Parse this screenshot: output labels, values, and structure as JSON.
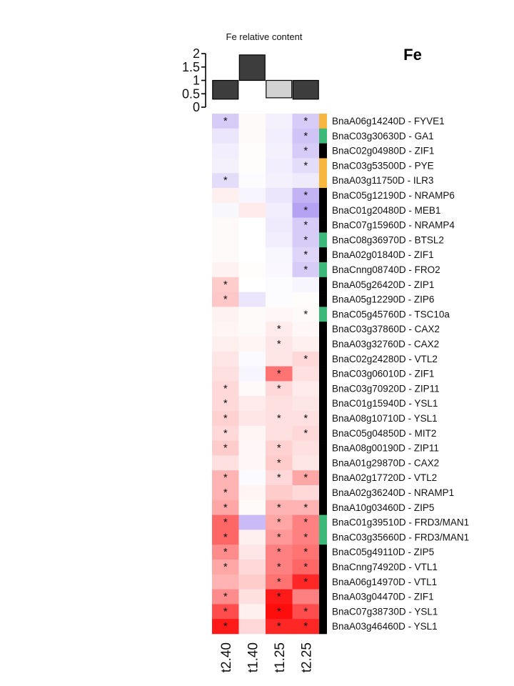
{
  "panel_title": "Fe",
  "chart_data": [
    {
      "type": "bar",
      "title": "Fe relative content",
      "categories": [
        "t2.40",
        "t1.40",
        "t1.25",
        "t2.25"
      ],
      "values": [
        0.3,
        1.95,
        0.35,
        0.3
      ],
      "bar_colors": [
        "#3d3d3d",
        "#3d3d3d",
        "#d2d2d2",
        "#3d3d3d"
      ],
      "baseline": 1,
      "ylim": [
        0,
        2
      ],
      "yticks": [
        "0",
        "0.5",
        "1",
        "1.5",
        "2"
      ]
    },
    {
      "type": "heatmap",
      "columns": [
        "t2.40",
        "t1.40",
        "t1.25",
        "t2.25"
      ],
      "color_scale": {
        "negative": "#7a55e8",
        "zero": "#ffffff",
        "positive": "#ff0000",
        "range": [
          -1,
          1
        ]
      },
      "category_colors": {
        "yellow": "#f7b73f",
        "green": "#3cb878",
        "black": "#000000"
      },
      "rows": [
        {
          "gene": "BnaA06g14240D - FYVE1",
          "values": [
            -0.3,
            0.02,
            -0.08,
            -0.3
          ],
          "sig": [
            true,
            false,
            false,
            true
          ],
          "category": "yellow"
        },
        {
          "gene": "BnaC03g30630D - GA1",
          "values": [
            -0.15,
            0.02,
            -0.1,
            -0.35
          ],
          "sig": [
            false,
            false,
            false,
            true
          ],
          "category": "green"
        },
        {
          "gene": "BnaC02g04980D - ZIF1",
          "values": [
            -0.1,
            0.01,
            -0.08,
            -0.3
          ],
          "sig": [
            false,
            false,
            false,
            true
          ],
          "category": "black"
        },
        {
          "gene": "BnaC03g53500D - PYE",
          "values": [
            -0.08,
            0.01,
            -0.1,
            -0.2
          ],
          "sig": [
            false,
            false,
            false,
            true
          ],
          "category": "yellow"
        },
        {
          "gene": "BnaA03g11750D - ILR3",
          "values": [
            -0.2,
            -0.02,
            -0.08,
            -0.12
          ],
          "sig": [
            true,
            false,
            false,
            false
          ],
          "category": "yellow"
        },
        {
          "gene": "BnaC05g12190D - NRAMP6",
          "values": [
            0.06,
            -0.06,
            -0.15,
            -0.45
          ],
          "sig": [
            false,
            false,
            false,
            true
          ],
          "category": "black"
        },
        {
          "gene": "BnaC01g20480D - MEB1",
          "values": [
            -0.05,
            0.08,
            -0.1,
            -0.55
          ],
          "sig": [
            false,
            false,
            false,
            true
          ],
          "category": "black"
        },
        {
          "gene": "BnaC07g15960D - NRAMP4",
          "values": [
            0.02,
            0.0,
            -0.12,
            -0.3
          ],
          "sig": [
            false,
            false,
            false,
            true
          ],
          "category": "black"
        },
        {
          "gene": "BnaC08g36970D - BTSL2",
          "values": [
            0.02,
            0.0,
            -0.1,
            -0.3
          ],
          "sig": [
            false,
            false,
            false,
            true
          ],
          "category": "green"
        },
        {
          "gene": "BnaA02g01840D - ZIF1",
          "values": [
            0.02,
            0.0,
            -0.05,
            -0.25
          ],
          "sig": [
            false,
            false,
            false,
            true
          ],
          "category": "black"
        },
        {
          "gene": "BnaCnng08740D - FRO2",
          "values": [
            0.05,
            0.01,
            -0.04,
            -0.3
          ],
          "sig": [
            false,
            false,
            false,
            true
          ],
          "category": "green"
        },
        {
          "gene": "BnaA05g26420D - ZIP1",
          "values": [
            0.2,
            0.0,
            -0.02,
            -0.06
          ],
          "sig": [
            true,
            false,
            false,
            false
          ],
          "category": "black"
        },
        {
          "gene": "BnaA05g12290D - ZIP6",
          "values": [
            0.22,
            -0.15,
            -0.02,
            0.01
          ],
          "sig": [
            true,
            false,
            false,
            false
          ],
          "category": "black"
        },
        {
          "gene": "BnaC05g45760D - TSC10a",
          "values": [
            0.05,
            0.02,
            0.03,
            0.02
          ],
          "sig": [
            false,
            false,
            false,
            true
          ],
          "category": "green"
        },
        {
          "gene": "BnaC03g37860D - CAX2",
          "values": [
            0.04,
            0.02,
            0.08,
            0.03
          ],
          "sig": [
            false,
            false,
            true,
            false
          ],
          "category": "black"
        },
        {
          "gene": "BnaA03g32760D - CAX2",
          "values": [
            0.06,
            0.04,
            0.1,
            0.06
          ],
          "sig": [
            false,
            false,
            true,
            false
          ],
          "category": "black"
        },
        {
          "gene": "BnaC02g24280D - VTL2",
          "values": [
            0.1,
            -0.03,
            0.1,
            0.15
          ],
          "sig": [
            false,
            false,
            false,
            true
          ],
          "category": "black"
        },
        {
          "gene": "BnaC03g06010D - ZIF1",
          "values": [
            0.12,
            -0.06,
            0.55,
            0.12
          ],
          "sig": [
            false,
            false,
            true,
            false
          ],
          "category": "black"
        },
        {
          "gene": "BnaC03g70920D - ZIP11",
          "values": [
            0.15,
            0.02,
            0.15,
            0.08
          ],
          "sig": [
            true,
            false,
            true,
            false
          ],
          "category": "black"
        },
        {
          "gene": "BnaC01g15940D - YSL1",
          "values": [
            0.15,
            0.08,
            0.12,
            0.1
          ],
          "sig": [
            true,
            false,
            false,
            false
          ],
          "category": "black"
        },
        {
          "gene": "BnaA08g10710D - YSL1",
          "values": [
            0.18,
            0.1,
            0.12,
            0.12
          ],
          "sig": [
            true,
            false,
            true,
            true
          ],
          "category": "black"
        },
        {
          "gene": "BnaC05g04850D - MIT2",
          "values": [
            0.15,
            0.04,
            0.12,
            0.15
          ],
          "sig": [
            true,
            false,
            false,
            true
          ],
          "category": "black"
        },
        {
          "gene": "BnaA08g00190D - ZIP11",
          "values": [
            0.2,
            0.03,
            0.18,
            0.12
          ],
          "sig": [
            true,
            false,
            true,
            false
          ],
          "category": "black"
        },
        {
          "gene": "BnaA01g29870D - CAX2",
          "values": [
            0.12,
            0.03,
            0.2,
            0.1
          ],
          "sig": [
            false,
            false,
            true,
            false
          ],
          "category": "black"
        },
        {
          "gene": "BnaA02g17720D - VTL2",
          "values": [
            0.3,
            -0.03,
            0.15,
            0.35
          ],
          "sig": [
            true,
            false,
            true,
            true
          ],
          "category": "black"
        },
        {
          "gene": "BnaA02g36240D - NRAMP1",
          "values": [
            0.3,
            0.04,
            0.2,
            0.15
          ],
          "sig": [
            true,
            false,
            false,
            false
          ],
          "category": "black"
        },
        {
          "gene": "BnaA10g03460D - ZIP5",
          "values": [
            0.35,
            0.02,
            0.3,
            0.3
          ],
          "sig": [
            true,
            false,
            true,
            true
          ],
          "category": "black"
        },
        {
          "gene": "BnaC01g39510D - FRD3/MAN1",
          "values": [
            0.6,
            -0.4,
            0.35,
            0.5
          ],
          "sig": [
            true,
            false,
            true,
            true
          ],
          "category": "green"
        },
        {
          "gene": "BnaC03g35660D - FRD3/MAN1",
          "values": [
            0.6,
            0.06,
            0.4,
            0.5
          ],
          "sig": [
            true,
            false,
            true,
            true
          ],
          "category": "green"
        },
        {
          "gene": "BnaC05g49110D - ZIP5",
          "values": [
            0.45,
            0.1,
            0.5,
            0.55
          ],
          "sig": [
            true,
            false,
            true,
            true
          ],
          "category": "black"
        },
        {
          "gene": "BnaCnng74920D - VTL1",
          "values": [
            0.35,
            0.15,
            0.5,
            0.6
          ],
          "sig": [
            true,
            false,
            true,
            true
          ],
          "category": "black"
        },
        {
          "gene": "BnaA06g14970D - VTL1",
          "values": [
            0.3,
            0.2,
            0.55,
            0.85
          ],
          "sig": [
            false,
            false,
            true,
            true
          ],
          "category": "black"
        },
        {
          "gene": "BnaA03g04470D - ZIF1",
          "values": [
            0.45,
            0.12,
            0.9,
            0.5
          ],
          "sig": [
            true,
            false,
            true,
            false
          ],
          "category": "black"
        },
        {
          "gene": "BnaC07g38730D - YSL1",
          "values": [
            0.7,
            0.06,
            0.95,
            0.7
          ],
          "sig": [
            true,
            false,
            true,
            true
          ],
          "category": "black"
        },
        {
          "gene": "BnaA03g46460D - YSL1",
          "values": [
            0.9,
            0.15,
            0.85,
            0.85
          ],
          "sig": [
            true,
            false,
            true,
            true
          ],
          "category": "black"
        }
      ]
    }
  ]
}
